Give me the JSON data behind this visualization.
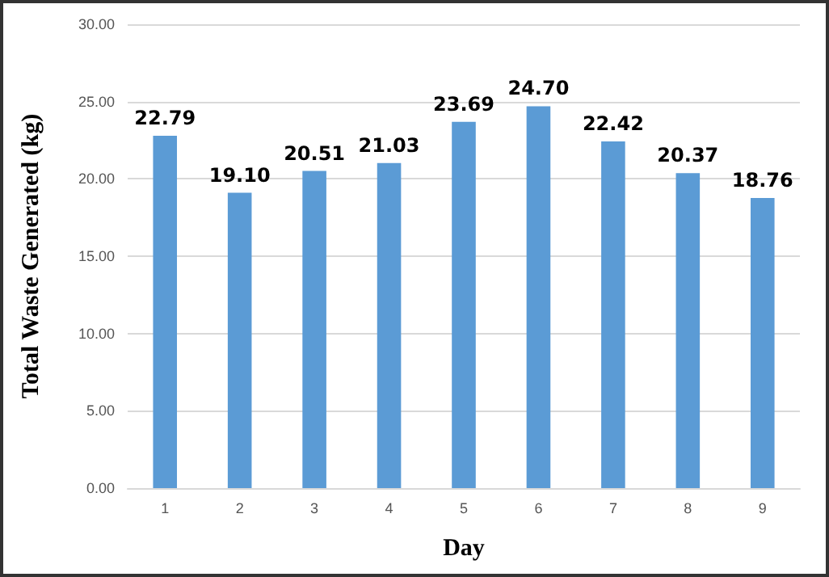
{
  "chart_data": {
    "type": "bar",
    "xlabel": "Day",
    "ylabel": "Total Waste Generated (kg)",
    "categories": [
      "1",
      "2",
      "3",
      "4",
      "5",
      "6",
      "7",
      "8",
      "9"
    ],
    "values": [
      22.79,
      19.1,
      20.51,
      21.03,
      23.69,
      24.7,
      22.42,
      20.37,
      18.76
    ],
    "value_labels": [
      "22.79",
      "19.10",
      "20.51",
      "21.03",
      "23.69",
      "24.70",
      "22.42",
      "20.37",
      "18.76"
    ],
    "color": "#5b9bd5",
    "ylim": [
      0,
      30
    ],
    "yticks": [
      {
        "value": 0,
        "label": "0.00"
      },
      {
        "value": 5,
        "label": "5.00"
      },
      {
        "value": 10,
        "label": "10.00"
      },
      {
        "value": 15,
        "label": "15.00"
      },
      {
        "value": 20,
        "label": "20.00"
      },
      {
        "value": 25,
        "label": "25.00"
      },
      {
        "value": 30,
        "label": "30.00"
      }
    ],
    "grid": "y"
  }
}
